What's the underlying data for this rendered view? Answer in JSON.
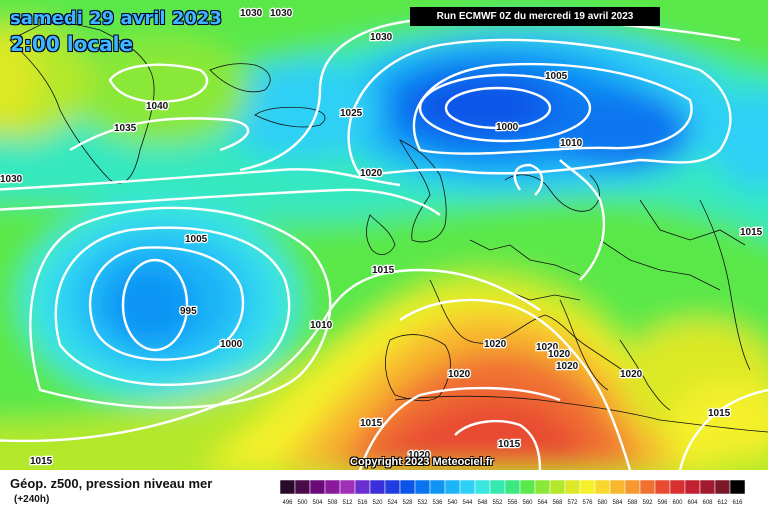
{
  "header": {
    "date": "samedi 29 avril 2023",
    "time": "2:00 locale",
    "run": "Run ECMWF 0Z du mercredi 19 avril 2023"
  },
  "map": {
    "copyright": "Copyright 2023 Meteociel.fr",
    "isobar_labels": [
      {
        "id": "1030-a",
        "text": "1030"
      },
      {
        "id": "1030-b",
        "text": "1030"
      },
      {
        "id": "1030-c",
        "text": "1030"
      },
      {
        "id": "1030-d",
        "text": "1030"
      },
      {
        "id": "1040",
        "text": "1040"
      },
      {
        "id": "1035",
        "text": "1035"
      },
      {
        "id": "1025",
        "text": "1025"
      },
      {
        "id": "1020-a",
        "text": "1020"
      },
      {
        "id": "1005-a",
        "text": "1005"
      },
      {
        "id": "1000-a",
        "text": "1000"
      },
      {
        "id": "1010-a",
        "text": "1010"
      },
      {
        "id": "1005-b",
        "text": "1005"
      },
      {
        "id": "995",
        "text": "995"
      },
      {
        "id": "1000-b",
        "text": "1000"
      },
      {
        "id": "1010-b",
        "text": "1010"
      },
      {
        "id": "1015-a",
        "text": "1015"
      },
      {
        "id": "1015-b",
        "text": "1015"
      },
      {
        "id": "1020-b",
        "text": "1020"
      },
      {
        "id": "1020-c",
        "text": "1020"
      },
      {
        "id": "1020-d",
        "text": "1020"
      },
      {
        "id": "1020-e",
        "text": "1020"
      },
      {
        "id": "1020-f",
        "text": "1020"
      },
      {
        "id": "1020-g",
        "text": "1020"
      },
      {
        "id": "1015-c",
        "text": "1015"
      },
      {
        "id": "1020-h",
        "text": "1020"
      },
      {
        "id": "1015-d",
        "text": "1015"
      },
      {
        "id": "1015-e",
        "text": "1015"
      },
      {
        "id": "1015-f",
        "text": "1015"
      }
    ]
  },
  "legend": {
    "title": "Géop. z500, pression niveau mer",
    "subtitle": "(+240h)",
    "scale_values": [
      "496",
      "500",
      "504",
      "508",
      "512",
      "516",
      "520",
      "524",
      "528",
      "532",
      "536",
      "540",
      "544",
      "548",
      "552",
      "556",
      "560",
      "564",
      "568",
      "572",
      "576",
      "580",
      "584",
      "588",
      "592",
      "596",
      "600",
      "604",
      "608",
      "612",
      "616"
    ],
    "scale_colors": [
      "#2a0a2a",
      "#4b0b4b",
      "#6a0a7a",
      "#8a1a9a",
      "#a030b8",
      "#6a2fd0",
      "#3a2fd8",
      "#1f3de0",
      "#0a55e8",
      "#0a74f0",
      "#0f94f5",
      "#1ab4f7",
      "#2fd0f5",
      "#3ae6e0",
      "#34e8b0",
      "#3ae880",
      "#5ae84a",
      "#8ae838",
      "#b4e82c",
      "#dce826",
      "#f4f02a",
      "#f8d82c",
      "#f8b82e",
      "#f89630",
      "#f07030",
      "#e84c30",
      "#d83030",
      "#c02030",
      "#a01a30",
      "#781828",
      "#000000"
    ]
  }
}
